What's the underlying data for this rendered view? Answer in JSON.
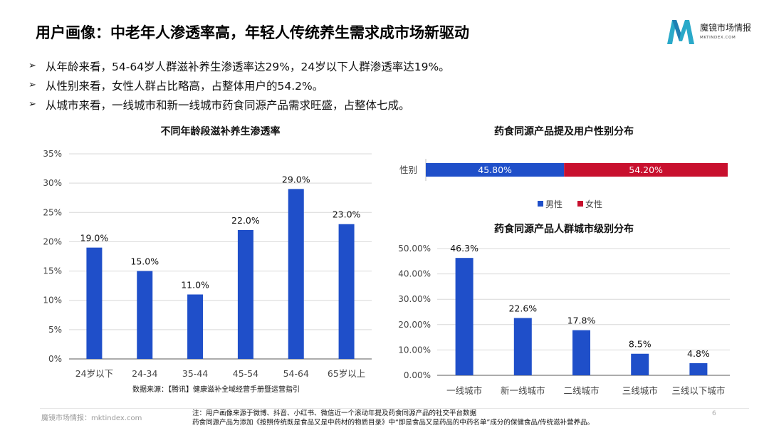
{
  "header": {
    "title": "用户画像：中老年人渗透率高，年轻人传统养生需求成市场新驱动",
    "logo_text": "魔镜市场情报",
    "logo_sub": "MKTINDEX.COM"
  },
  "bullets": [
    "从年龄来看，54-64岁人群滋补养生渗透率达29%，24岁以下人群渗透率达19%。",
    "从性别来看，女性人群占比略高，占整体用户的54.2%。",
    "从城市来看，一线城市和新一线城市药食同源产品需求旺盛，占整体七成。"
  ],
  "colors": {
    "blue": "#1f4fc9",
    "red": "#c8102e",
    "grid": "#d9d9d9",
    "axis": "#595959"
  },
  "chart_data": [
    {
      "type": "bar",
      "title": "不同年龄段滋补养生渗透率",
      "categories": [
        "24岁以下",
        "24-34",
        "35-44",
        "45-54",
        "54-64",
        "65岁以上"
      ],
      "values": [
        19.0,
        15.0,
        11.0,
        22.0,
        29.0,
        23.0
      ],
      "value_labels": [
        "19.0%",
        "15.0%",
        "11.0%",
        "22.0%",
        "29.0%",
        "23.0%"
      ],
      "ylim": [
        0,
        35
      ],
      "yticks": [
        "0%",
        "5%",
        "10%",
        "15%",
        "20%",
        "25%",
        "30%",
        "35%"
      ],
      "grid": true
    },
    {
      "type": "bar",
      "orientation": "horizontal-stacked",
      "title": "药食同源产品提及用户性别分布",
      "categories": [
        "性别"
      ],
      "series": [
        {
          "name": "男性",
          "values": [
            45.8
          ],
          "label": "45.80%"
        },
        {
          "name": "女性",
          "values": [
            54.2
          ],
          "label": "54.20%"
        }
      ],
      "legend": "bottom"
    },
    {
      "type": "bar",
      "title": "药食同源产品人群城市级别分布",
      "categories": [
        "一线城市",
        "新一线城市",
        "二线城市",
        "三线城市",
        "三线以下城市"
      ],
      "values": [
        46.3,
        22.6,
        17.8,
        8.5,
        4.8
      ],
      "value_labels": [
        "46.3%",
        "22.6%",
        "17.8%",
        "8.5%",
        "4.8%"
      ],
      "ylim": [
        0,
        50
      ],
      "yticks": [
        "0.00%",
        "10.00%",
        "20.00%",
        "30.00%",
        "40.00%",
        "50.00%"
      ],
      "grid": true
    }
  ],
  "source_note": "数据来源：【腾讯】健康滋补全域经营手册暨运营指引",
  "footer": {
    "brand": "魔镜市场情报：mktindex.com",
    "note_line1": "注：用户画像来源于微博、抖音、小红书、微信近一个滚动年提及药食同源产品的社交平台数据",
    "note_line2": "药食同源产品为添加《按照传统既是食品又是中药材的物质目录》中“即是食品又是药品的中药名单”成分的保健食品/传统滋补营养品。",
    "page_number": "6"
  }
}
